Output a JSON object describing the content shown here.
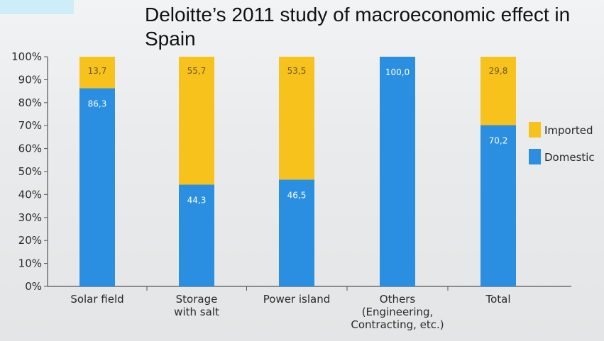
{
  "title": "Deloitte’s 2011 study of macroeconomic effect in Spain",
  "colors": {
    "imported": "#f7c21c",
    "domestic": "#2a8fe0",
    "axis": "#555555",
    "imported_label": "#6b5a20",
    "domestic_label": "#ffffff"
  },
  "chart_data": {
    "type": "bar",
    "stacked": true,
    "title": "",
    "xlabel": "",
    "ylabel": "",
    "ylim": [
      0,
      100
    ],
    "y_ticks": [
      "0%",
      "10%",
      "20%",
      "30%",
      "40%",
      "50%",
      "60%",
      "70%",
      "80%",
      "90%",
      "100%"
    ],
    "categories": [
      [
        "Solar field"
      ],
      [
        "Storage",
        "with salt"
      ],
      [
        "Power island"
      ],
      [
        "Others",
        "(Engineering,",
        "Contracting, etc.)"
      ],
      [
        "Total"
      ]
    ],
    "series": [
      {
        "name": "Domestic",
        "values": [
          86.3,
          44.3,
          46.5,
          100.0,
          70.2
        ],
        "labels": [
          "86,3",
          "44,3",
          "46,5",
          "100,0",
          "70,2"
        ]
      },
      {
        "name": "Imported",
        "values": [
          13.7,
          55.7,
          53.5,
          0,
          29.8
        ],
        "labels": [
          "13,7",
          "55,7",
          "53,5",
          "",
          "29,8"
        ]
      }
    ],
    "legend": {
      "position": "right",
      "entries": [
        "Imported",
        "Domestic"
      ]
    },
    "grid": false
  }
}
